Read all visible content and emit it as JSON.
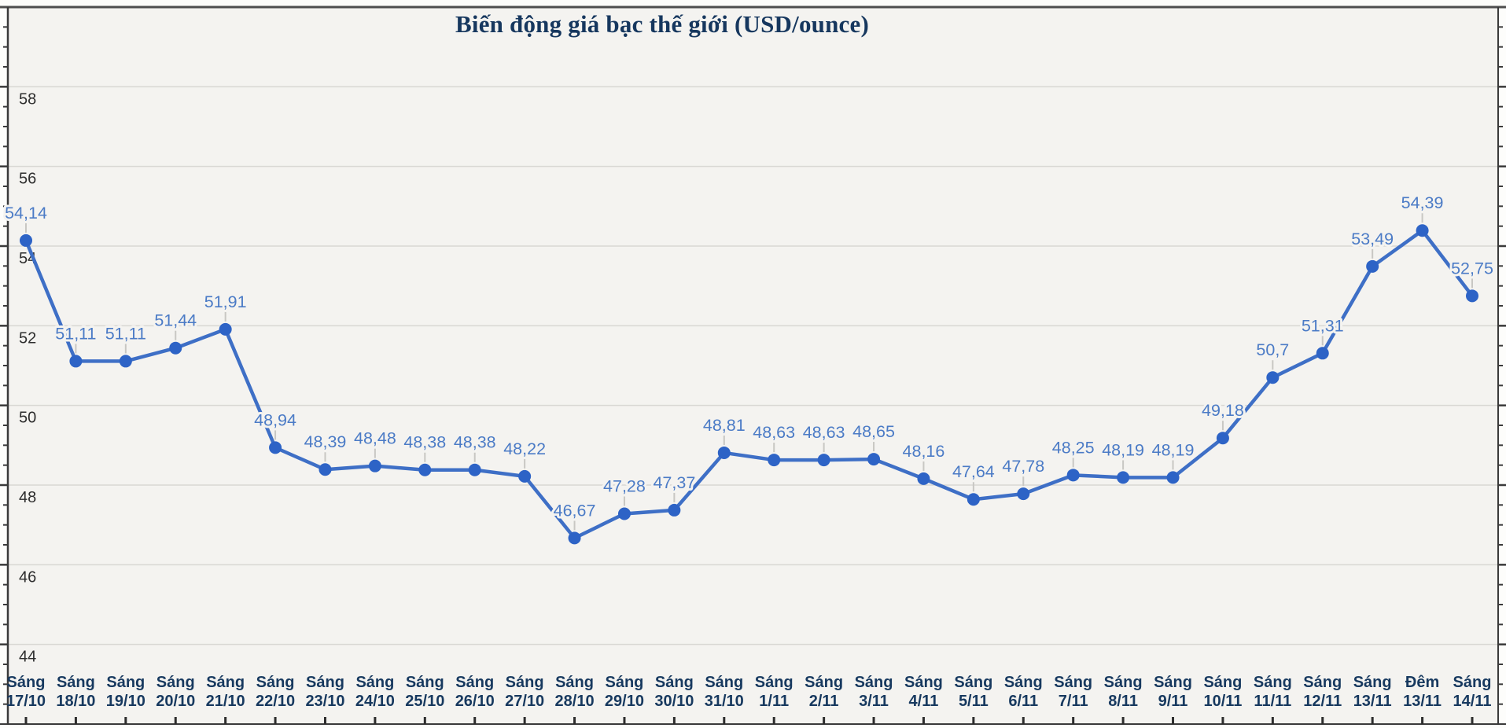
{
  "chart_data": {
    "type": "line",
    "title": "Biến động giá bạc thế giới (USD/ounce)",
    "categories": [
      "Sáng 17/10",
      "Sáng 18/10",
      "Sáng 19/10",
      "Sáng 20/10",
      "Sáng 21/10",
      "Sáng 22/10",
      "Sáng 23/10",
      "Sáng 24/10",
      "Sáng 25/10",
      "Sáng 26/10",
      "Sáng 27/10",
      "Sáng 28/10",
      "Sáng 29/10",
      "Sáng 30/10",
      "Sáng 31/10",
      "Sáng 1/11",
      "Sáng 2/11",
      "Sáng 3/11",
      "Sáng 4/11",
      "Sáng 5/11",
      "Sáng 6/11",
      "Sáng 7/11",
      "Sáng 8/11",
      "Sáng 9/11",
      "Sáng 10/11",
      "Sáng 11/11",
      "Sáng 12/11",
      "Sáng 13/11",
      "Đêm 13/11",
      "Sáng 14/11"
    ],
    "values": [
      54.14,
      51.11,
      51.11,
      51.44,
      51.91,
      48.94,
      48.39,
      48.48,
      48.38,
      48.38,
      48.22,
      46.67,
      47.28,
      47.37,
      48.81,
      48.63,
      48.63,
      48.65,
      48.16,
      47.64,
      47.78,
      48.25,
      48.19,
      48.19,
      49.18,
      50.7,
      51.31,
      53.49,
      54.39,
      52.75
    ],
    "value_labels": [
      "54,14",
      "51,11",
      "51,11",
      "51,44",
      "51,91",
      "48,94",
      "48,39",
      "48,48",
      "48,38",
      "48,38",
      "48,22",
      "46,67",
      "47,28",
      "47,37",
      "48,81",
      "48,63",
      "48,63",
      "48,65",
      "48,16",
      "47,64",
      "47,78",
      "48,25",
      "48,19",
      "48,19",
      "49,18",
      "50,7",
      "51,31",
      "53,49",
      "54,39",
      "52,75"
    ],
    "xlabel": "",
    "ylabel": "",
    "ylim": [
      42,
      60
    ],
    "y_gridlines": [
      44,
      46,
      48,
      50,
      52,
      54,
      56,
      58
    ],
    "minor_tick_step": 0.5,
    "grid": true,
    "legend": "none",
    "colors": {
      "line": "#3E6FC6",
      "marker": "#2D63C6",
      "data_label": "#4B7BC6",
      "axis_label": "#2D2D2D",
      "x_label": "#17395F",
      "title": "#16375E",
      "gridline": "#D8D7D3",
      "axis_line": "#3A3A3A",
      "top_line": "#4E4E4E",
      "leader": "#C8C7C3",
      "plot_bg": "#F4F3F0",
      "page_bg": "#FDFDFB"
    }
  }
}
